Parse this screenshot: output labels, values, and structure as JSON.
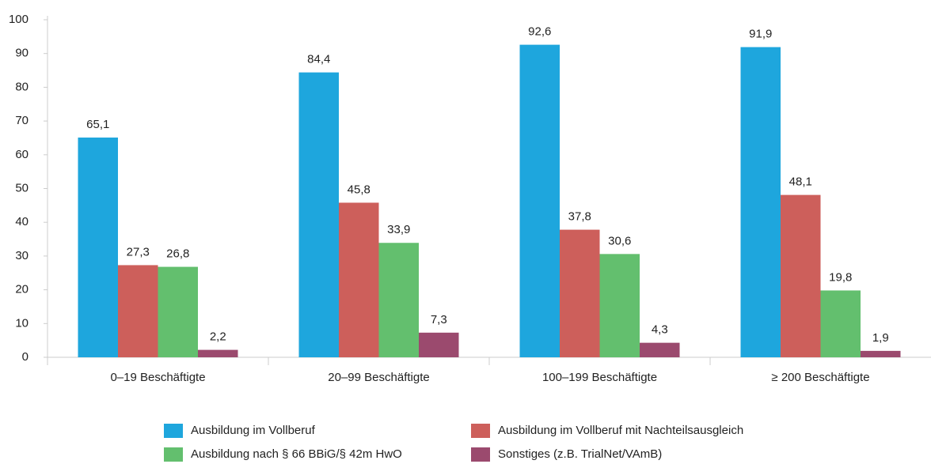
{
  "chart_data": {
    "type": "bar",
    "categories": [
      "0–19 Beschäftigte",
      "20–99 Beschäftigte",
      "100–199 Beschäftigte",
      "≥ 200 Beschäftigte"
    ],
    "series": [
      {
        "name": "Ausbildung im Vollberuf",
        "color": "#1ea6dd",
        "values": [
          65.1,
          84.4,
          92.6,
          91.9
        ],
        "value_labels": [
          "65,1",
          "84,4",
          "92,6",
          "91,9"
        ]
      },
      {
        "name": "Ausbildung im Vollberuf mit Nachteilsausgleich",
        "color": "#cd5f5b",
        "values": [
          27.3,
          45.8,
          37.8,
          48.1
        ],
        "value_labels": [
          "27,3",
          "45,8",
          "37,8",
          "48,1"
        ]
      },
      {
        "name": "Ausbildung nach § 66 BBiG/§ 42m HwO",
        "color": "#63bf6e",
        "values": [
          26.8,
          33.9,
          30.6,
          19.8
        ],
        "value_labels": [
          "26,8",
          "33,9",
          "30,6",
          "19,8"
        ]
      },
      {
        "name": "Sonstiges (z.B. TrialNet/VAmB)",
        "color": "#9b4a6e",
        "values": [
          2.2,
          7.3,
          4.3,
          1.9
        ],
        "value_labels": [
          "2,2",
          "7,3",
          "4,3",
          "1,9"
        ]
      }
    ],
    "ylim": [
      0,
      100
    ],
    "yticks": [
      0,
      10,
      20,
      30,
      40,
      50,
      60,
      70,
      80,
      90,
      100
    ],
    "grid": false,
    "legend": "bottom"
  }
}
